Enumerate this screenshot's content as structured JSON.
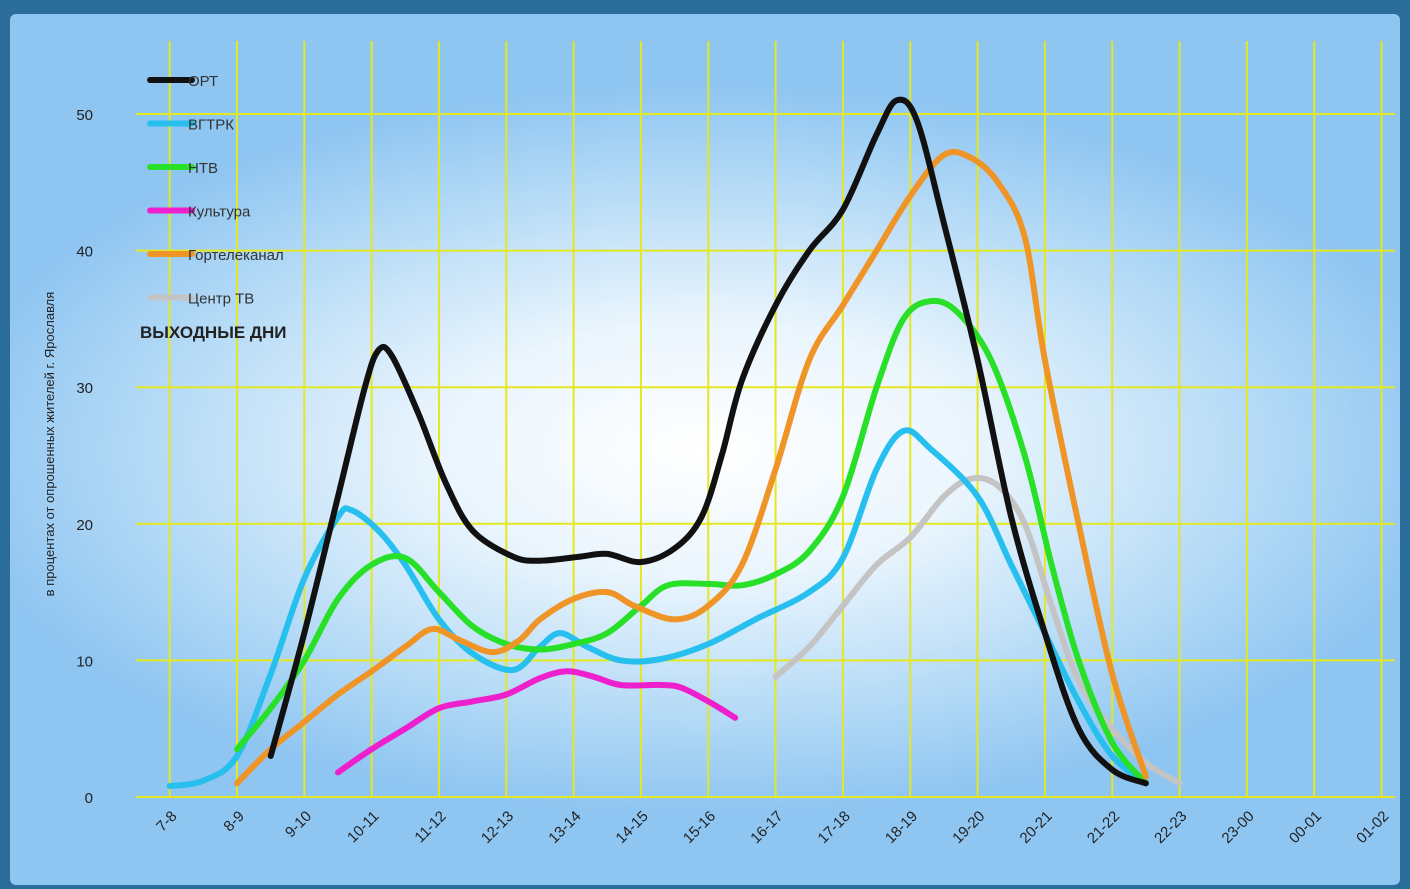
{
  "chart_data": {
    "type": "line",
    "subtitle": "ВЫХОДНЫЕ ДНИ",
    "ylabel": "в процентах от опрошенных жителей г. Ярославля",
    "xlabel": "",
    "ylim": [
      0,
      50
    ],
    "yticks": [
      0,
      10,
      20,
      30,
      40,
      50
    ],
    "grid": true,
    "legend_position": "top-left",
    "categories": [
      "7-8",
      "8-9",
      "9-10",
      "10-11",
      "11-12",
      "12-13",
      "13-14",
      "14-15",
      "15-16",
      "16-17",
      "17-18",
      "18-19",
      "19-20",
      "20-21",
      "21-22",
      "22-23",
      "23-00",
      "00-01",
      "01-02"
    ],
    "series": [
      {
        "name": "ОРТ",
        "color": "#111111",
        "points": [
          [
            1,
            3
          ],
          [
            1.5,
            12
          ],
          [
            2,
            22
          ],
          [
            2.4,
            30
          ],
          [
            2.6,
            32.7
          ],
          [
            2.8,
            32.3
          ],
          [
            3.2,
            28
          ],
          [
            3.6,
            23
          ],
          [
            4,
            19.5
          ],
          [
            4.6,
            17.6
          ],
          [
            5,
            17.3
          ],
          [
            5.6,
            17.6
          ],
          [
            6,
            17.8
          ],
          [
            6.5,
            17.2
          ],
          [
            7,
            18.2
          ],
          [
            7.4,
            20.5
          ],
          [
            7.7,
            25
          ],
          [
            8,
            30.5
          ],
          [
            8.5,
            36
          ],
          [
            9,
            40
          ],
          [
            9.5,
            43
          ],
          [
            10,
            48.5
          ],
          [
            10.3,
            51
          ],
          [
            10.6,
            49.5
          ],
          [
            11,
            42
          ],
          [
            11.5,
            32
          ],
          [
            12,
            20.5
          ],
          [
            12.5,
            12
          ],
          [
            13,
            5
          ],
          [
            13.5,
            2
          ],
          [
            14,
            1
          ]
        ]
      },
      {
        "name": "ВГТРК",
        "color": "#27bfee",
        "points": [
          [
            -0.5,
            0.8
          ],
          [
            0,
            1.2
          ],
          [
            0.5,
            3
          ],
          [
            1,
            9
          ],
          [
            1.5,
            16
          ],
          [
            2,
            20.5
          ],
          [
            2.2,
            21
          ],
          [
            2.6,
            19.5
          ],
          [
            3,
            17
          ],
          [
            3.5,
            13
          ],
          [
            4,
            10.5
          ],
          [
            4.6,
            9.3
          ],
          [
            5,
            11
          ],
          [
            5.3,
            12
          ],
          [
            5.7,
            11
          ],
          [
            6.2,
            10
          ],
          [
            6.8,
            10.1
          ],
          [
            7.5,
            11.2
          ],
          [
            8.2,
            13
          ],
          [
            9,
            15
          ],
          [
            9.5,
            17.5
          ],
          [
            10,
            24
          ],
          [
            10.4,
            26.8
          ],
          [
            10.8,
            25.5
          ],
          [
            11.5,
            22
          ],
          [
            12,
            17
          ],
          [
            12.5,
            12
          ],
          [
            13,
            7
          ],
          [
            13.5,
            3
          ],
          [
            14,
            1
          ]
        ]
      },
      {
        "name": "НТВ",
        "color": "#27e027",
        "points": [
          [
            0.5,
            3.5
          ],
          [
            1,
            6.5
          ],
          [
            1.5,
            10
          ],
          [
            2,
            14.5
          ],
          [
            2.5,
            17
          ],
          [
            3,
            17.5
          ],
          [
            3.5,
            15
          ],
          [
            4,
            12.5
          ],
          [
            4.5,
            11.2
          ],
          [
            5,
            10.8
          ],
          [
            5.5,
            11.2
          ],
          [
            6,
            12
          ],
          [
            6.5,
            14
          ],
          [
            6.9,
            15.5
          ],
          [
            7.5,
            15.6
          ],
          [
            8,
            15.5
          ],
          [
            8.5,
            16.3
          ],
          [
            9,
            18
          ],
          [
            9.5,
            22
          ],
          [
            10,
            30
          ],
          [
            10.4,
            35
          ],
          [
            10.8,
            36.3
          ],
          [
            11.2,
            35.5
          ],
          [
            11.7,
            32
          ],
          [
            12.2,
            25
          ],
          [
            12.6,
            17
          ],
          [
            13,
            10
          ],
          [
            13.5,
            4
          ],
          [
            14,
            1
          ]
        ]
      },
      {
        "name": "Культура",
        "color": "#ee1fcc",
        "points": [
          [
            2,
            1.8
          ],
          [
            2.5,
            3.5
          ],
          [
            3,
            5
          ],
          [
            3.5,
            6.5
          ],
          [
            4,
            7
          ],
          [
            4.5,
            7.5
          ],
          [
            5,
            8.7
          ],
          [
            5.4,
            9.2
          ],
          [
            5.8,
            8.8
          ],
          [
            6.2,
            8.2
          ],
          [
            6.8,
            8.2
          ],
          [
            7.1,
            8
          ],
          [
            7.5,
            7
          ],
          [
            7.9,
            5.8
          ]
        ]
      },
      {
        "name": "Гортелеканал",
        "color": "#ef9528",
        "points": [
          [
            0.5,
            1
          ],
          [
            1,
            3.5
          ],
          [
            1.5,
            5.5
          ],
          [
            2,
            7.5
          ],
          [
            2.5,
            9.2
          ],
          [
            3,
            11
          ],
          [
            3.4,
            12.3
          ],
          [
            3.8,
            11.5
          ],
          [
            4.3,
            10.6
          ],
          [
            4.7,
            11.5
          ],
          [
            5,
            13
          ],
          [
            5.5,
            14.5
          ],
          [
            6,
            15
          ],
          [
            6.4,
            14
          ],
          [
            7,
            13
          ],
          [
            7.5,
            14
          ],
          [
            8,
            17
          ],
          [
            8.5,
            24
          ],
          [
            9,
            32
          ],
          [
            9.5,
            36
          ],
          [
            10,
            40
          ],
          [
            10.5,
            44
          ],
          [
            11,
            47
          ],
          [
            11.4,
            46.8
          ],
          [
            11.8,
            45
          ],
          [
            12.2,
            41
          ],
          [
            12.5,
            32
          ],
          [
            13,
            20
          ],
          [
            13.5,
            9
          ],
          [
            14,
            1.5
          ]
        ]
      },
      {
        "name": "Центр ТВ",
        "color": "#c4c4c4",
        "points": [
          [
            8.5,
            8.8
          ],
          [
            9,
            11
          ],
          [
            9.5,
            14
          ],
          [
            10,
            17
          ],
          [
            10.5,
            19
          ],
          [
            11,
            22
          ],
          [
            11.4,
            23.3
          ],
          [
            11.8,
            22.8
          ],
          [
            12.2,
            20
          ],
          [
            12.6,
            14
          ],
          [
            13,
            8.5
          ],
          [
            13.5,
            5
          ],
          [
            14,
            2.5
          ],
          [
            14.5,
            1
          ]
        ]
      }
    ]
  }
}
